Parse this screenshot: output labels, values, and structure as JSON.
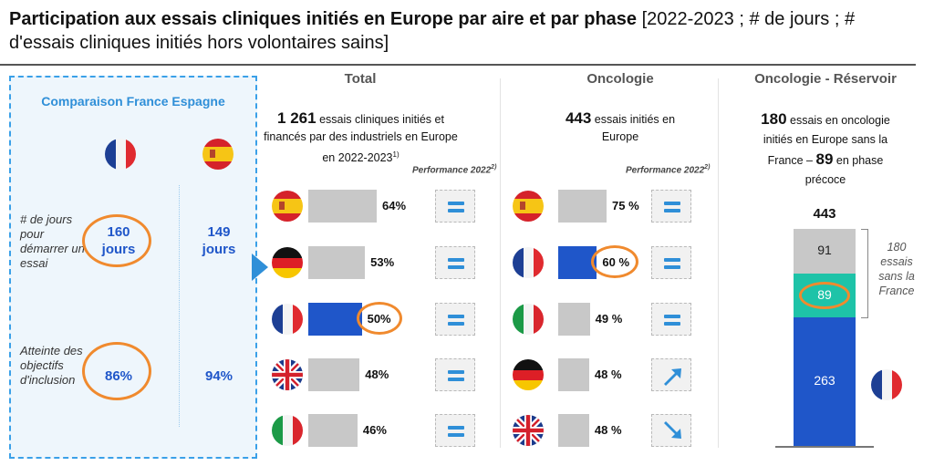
{
  "title": {
    "bold": "Participation aux essais cliniques initiés en Europe par aire et par phase",
    "regular_line1": " [2022-2023 ; # de jours ; #",
    "regular_line2": "d'essais cliniques initiés hors volontaires sains]"
  },
  "comparison": {
    "title": "Comparaison France Espagne",
    "rows": [
      {
        "label": "# de jours pour démarrer un essai",
        "france": "160 jours",
        "spain": "149 jours"
      },
      {
        "label": "Atteinte des objectifs d'inclusion",
        "france": "86%",
        "spain": "94%"
      }
    ]
  },
  "columns": {
    "total": {
      "head": "Total",
      "desc_bold": "1 261",
      "desc": " essais cliniques initiés et financés par des industriels en Europe en 2022-2023",
      "desc_sup": "1)",
      "perf_label": "Performance 2022",
      "perf_sup": "2)"
    },
    "onco": {
      "head": "Oncologie",
      "desc_bold": "443",
      "desc": " essais initiés en Europe",
      "perf_label": "Performance 2022",
      "perf_sup": "2)"
    },
    "reservoir": {
      "head": "Oncologie - Réservoir",
      "desc_bold1": "180",
      "desc1": " essais en oncologie initiés en Europe sans la France – ",
      "desc_bold2": "89",
      "desc2": " en phase précoce",
      "brace_text": "180 essais sans la France"
    }
  },
  "colors": {
    "blue": "#1f56c9",
    "grey": "#c8c8c8",
    "teal": "#1ec3a8",
    "orange": "#f08a2e",
    "accent": "#2f8fd8"
  },
  "chart_data": [
    {
      "type": "bar",
      "orientation": "horizontal",
      "panel": "Total",
      "categories": [
        "spain-flag",
        "germany-flag",
        "france-flag",
        "uk-flag",
        "italy-flag"
      ],
      "values": [
        64,
        53,
        50,
        48,
        46
      ],
      "value_labels": [
        "64%",
        "53%",
        "50%",
        "48%",
        "46%"
      ],
      "highlight": "france-flag",
      "performance": [
        "equal",
        "equal",
        "equal",
        "equal",
        "equal"
      ]
    },
    {
      "type": "bar",
      "orientation": "horizontal",
      "panel": "Oncologie",
      "categories": [
        "spain-flag",
        "france-flag",
        "italy-flag",
        "germany-flag",
        "uk-flag"
      ],
      "values": [
        75,
        60,
        49,
        48,
        48
      ],
      "value_labels": [
        "75 %",
        "60 %",
        "49 %",
        "48 %",
        "48 %"
      ],
      "highlight": "france-flag",
      "performance": [
        "equal",
        "equal",
        "equal",
        "up",
        "down"
      ]
    },
    {
      "type": "bar",
      "orientation": "vertical-stacked",
      "panel": "Oncologie - Réservoir",
      "total": 443,
      "total_label": "443",
      "segments": [
        {
          "value": 263,
          "label": "263",
          "color": "#1f56c9"
        },
        {
          "value": 89,
          "label": "89",
          "color": "#1ec3a8"
        },
        {
          "value": 91,
          "label": "91",
          "color": "#c8c8c8"
        }
      ]
    }
  ]
}
